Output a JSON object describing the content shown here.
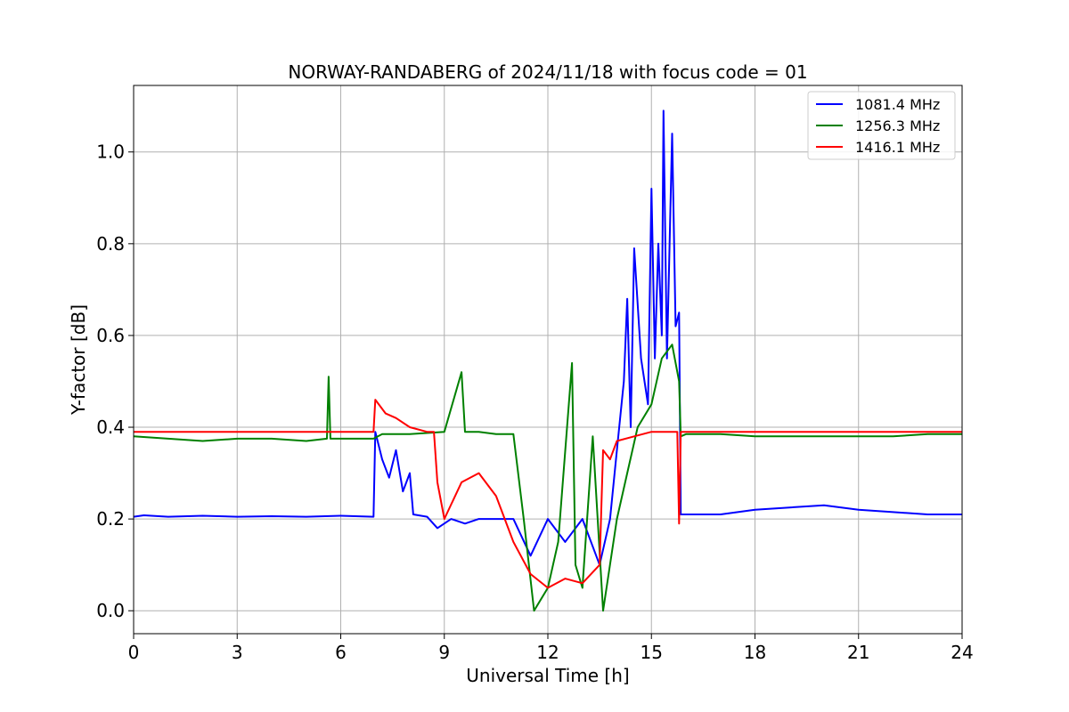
{
  "chart_data": {
    "type": "line",
    "title": "NORWAY-RANDABERG of 2024/11/18 with focus code = 01",
    "xlabel": "Universal Time [h]",
    "ylabel": "Y-factor [dB]",
    "xlim": [
      0,
      24
    ],
    "ylim": [
      -0.05,
      1.145
    ],
    "xticks": [
      0,
      3,
      6,
      9,
      12,
      15,
      18,
      21,
      24
    ],
    "xtick_labels": [
      "0",
      "3",
      "6",
      "9",
      "12",
      "15",
      "18",
      "21",
      "24"
    ],
    "yticks": [
      0.0,
      0.2,
      0.4,
      0.6,
      0.8,
      1.0
    ],
    "ytick_labels": [
      "0.0",
      "0.2",
      "0.4",
      "0.6",
      "0.8",
      "1.0"
    ],
    "grid": true,
    "legend_position": "top-right",
    "series": [
      {
        "name": "1081.4 MHz",
        "color": "#0000ff",
        "points": [
          [
            0,
            0.205
          ],
          [
            0.3,
            0.208
          ],
          [
            1,
            0.205
          ],
          [
            2,
            0.207
          ],
          [
            3,
            0.205
          ],
          [
            4,
            0.206
          ],
          [
            5,
            0.205
          ],
          [
            6,
            0.207
          ],
          [
            6.95,
            0.205
          ],
          [
            7.0,
            0.39
          ],
          [
            7.2,
            0.33
          ],
          [
            7.4,
            0.29
          ],
          [
            7.6,
            0.35
          ],
          [
            7.8,
            0.26
          ],
          [
            8.0,
            0.3
          ],
          [
            8.1,
            0.21
          ],
          [
            8.5,
            0.205
          ],
          [
            8.8,
            0.18
          ],
          [
            9.2,
            0.2
          ],
          [
            9.6,
            0.19
          ],
          [
            10,
            0.2
          ],
          [
            10.5,
            0.2
          ],
          [
            11,
            0.2
          ],
          [
            11.5,
            0.12
          ],
          [
            12,
            0.2
          ],
          [
            12.5,
            0.15
          ],
          [
            13,
            0.2
          ],
          [
            13.5,
            0.1
          ],
          [
            13.8,
            0.2
          ],
          [
            14.0,
            0.35
          ],
          [
            14.2,
            0.5
          ],
          [
            14.3,
            0.68
          ],
          [
            14.4,
            0.4
          ],
          [
            14.5,
            0.79
          ],
          [
            14.7,
            0.55
          ],
          [
            14.9,
            0.45
          ],
          [
            15.0,
            0.92
          ],
          [
            15.1,
            0.55
          ],
          [
            15.2,
            0.8
          ],
          [
            15.3,
            0.6
          ],
          [
            15.35,
            1.09
          ],
          [
            15.45,
            0.55
          ],
          [
            15.6,
            1.04
          ],
          [
            15.7,
            0.62
          ],
          [
            15.8,
            0.65
          ],
          [
            15.85,
            0.21
          ],
          [
            16.5,
            0.21
          ],
          [
            17,
            0.21
          ],
          [
            18,
            0.22
          ],
          [
            19,
            0.225
          ],
          [
            20,
            0.23
          ],
          [
            21,
            0.22
          ],
          [
            22,
            0.215
          ],
          [
            23,
            0.21
          ],
          [
            24,
            0.21
          ]
        ]
      },
      {
        "name": "1256.3 MHz",
        "color": "#008000",
        "points": [
          [
            0,
            0.38
          ],
          [
            1,
            0.375
          ],
          [
            2,
            0.37
          ],
          [
            3,
            0.375
          ],
          [
            4,
            0.375
          ],
          [
            5,
            0.37
          ],
          [
            5.6,
            0.375
          ],
          [
            5.65,
            0.51
          ],
          [
            5.7,
            0.375
          ],
          [
            6,
            0.375
          ],
          [
            6.95,
            0.375
          ],
          [
            7.2,
            0.385
          ],
          [
            8,
            0.385
          ],
          [
            9,
            0.39
          ],
          [
            9.5,
            0.52
          ],
          [
            9.6,
            0.39
          ],
          [
            10,
            0.39
          ],
          [
            10.5,
            0.385
          ],
          [
            11,
            0.385
          ],
          [
            11.3,
            0.2
          ],
          [
            11.6,
            0.0
          ],
          [
            12,
            0.05
          ],
          [
            12.3,
            0.15
          ],
          [
            12.7,
            0.54
          ],
          [
            12.8,
            0.1
          ],
          [
            13,
            0.05
          ],
          [
            13.3,
            0.38
          ],
          [
            13.6,
            0.0
          ],
          [
            14,
            0.2
          ],
          [
            14.3,
            0.3
          ],
          [
            14.6,
            0.4
          ],
          [
            15,
            0.45
          ],
          [
            15.3,
            0.55
          ],
          [
            15.6,
            0.58
          ],
          [
            15.8,
            0.5
          ],
          [
            15.85,
            0.38
          ],
          [
            16,
            0.385
          ],
          [
            17,
            0.385
          ],
          [
            18,
            0.38
          ],
          [
            19,
            0.38
          ],
          [
            20,
            0.38
          ],
          [
            21,
            0.38
          ],
          [
            22,
            0.38
          ],
          [
            23,
            0.385
          ],
          [
            24,
            0.385
          ]
        ]
      },
      {
        "name": "1416.1 MHz",
        "color": "#ff0000",
        "points": [
          [
            0,
            0.39
          ],
          [
            1,
            0.39
          ],
          [
            2,
            0.39
          ],
          [
            3,
            0.39
          ],
          [
            4,
            0.39
          ],
          [
            5,
            0.39
          ],
          [
            6,
            0.39
          ],
          [
            6.95,
            0.39
          ],
          [
            7.0,
            0.46
          ],
          [
            7.3,
            0.43
          ],
          [
            7.6,
            0.42
          ],
          [
            8,
            0.4
          ],
          [
            8.5,
            0.39
          ],
          [
            8.7,
            0.39
          ],
          [
            8.8,
            0.28
          ],
          [
            9,
            0.2
          ],
          [
            9.5,
            0.28
          ],
          [
            10,
            0.3
          ],
          [
            10.5,
            0.25
          ],
          [
            11,
            0.15
          ],
          [
            11.5,
            0.08
          ],
          [
            12,
            0.05
          ],
          [
            12.5,
            0.07
          ],
          [
            13,
            0.06
          ],
          [
            13.5,
            0.1
          ],
          [
            13.6,
            0.35
          ],
          [
            13.8,
            0.33
          ],
          [
            14,
            0.37
          ],
          [
            14.5,
            0.38
          ],
          [
            15,
            0.39
          ],
          [
            15.5,
            0.39
          ],
          [
            15.75,
            0.39
          ],
          [
            15.8,
            0.19
          ],
          [
            15.85,
            0.39
          ],
          [
            16,
            0.39
          ],
          [
            17,
            0.39
          ],
          [
            18,
            0.39
          ],
          [
            19,
            0.39
          ],
          [
            20,
            0.39
          ],
          [
            21,
            0.39
          ],
          [
            22,
            0.39
          ],
          [
            23,
            0.39
          ],
          [
            24,
            0.39
          ]
        ]
      }
    ]
  }
}
